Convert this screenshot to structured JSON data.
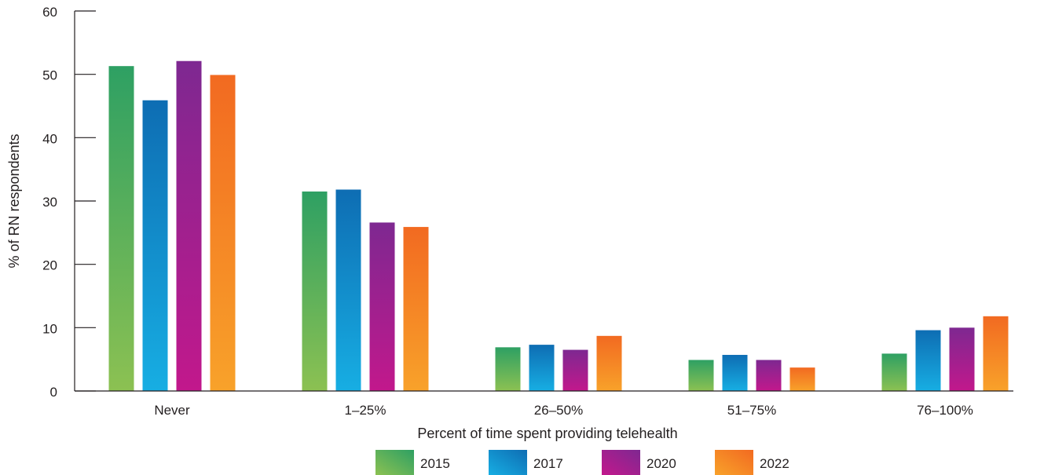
{
  "chart_data": {
    "type": "bar",
    "categories": [
      "Never",
      "1–25%",
      "26–50%",
      "51–75%",
      "76–100%"
    ],
    "series": [
      {
        "name": "2015",
        "values": [
          51.3,
          31.5,
          6.9,
          4.9,
          5.9
        ]
      },
      {
        "name": "2017",
        "values": [
          45.9,
          31.8,
          7.3,
          5.7,
          9.6
        ]
      },
      {
        "name": "2020",
        "values": [
          52.1,
          26.6,
          6.5,
          4.9,
          10.0
        ]
      },
      {
        "name": "2022",
        "values": [
          49.9,
          25.9,
          8.7,
          3.7,
          11.8
        ]
      }
    ],
    "title": "",
    "xlabel": "Percent of time spent providing telehealth",
    "ylabel": "% of RN respondents",
    "ylim": [
      0,
      60
    ],
    "yticks": [
      0,
      10,
      20,
      30,
      40,
      50,
      60
    ],
    "legend_position": "bottom",
    "grid": false,
    "colors": {
      "2015": [
        "#2ea063",
        "#8cc152"
      ],
      "2017": [
        "#0e6db3",
        "#17aee3"
      ],
      "2020": [
        "#7e2891",
        "#c2188c"
      ],
      "2022": [
        "#f26a21",
        "#f8a22a"
      ]
    }
  }
}
